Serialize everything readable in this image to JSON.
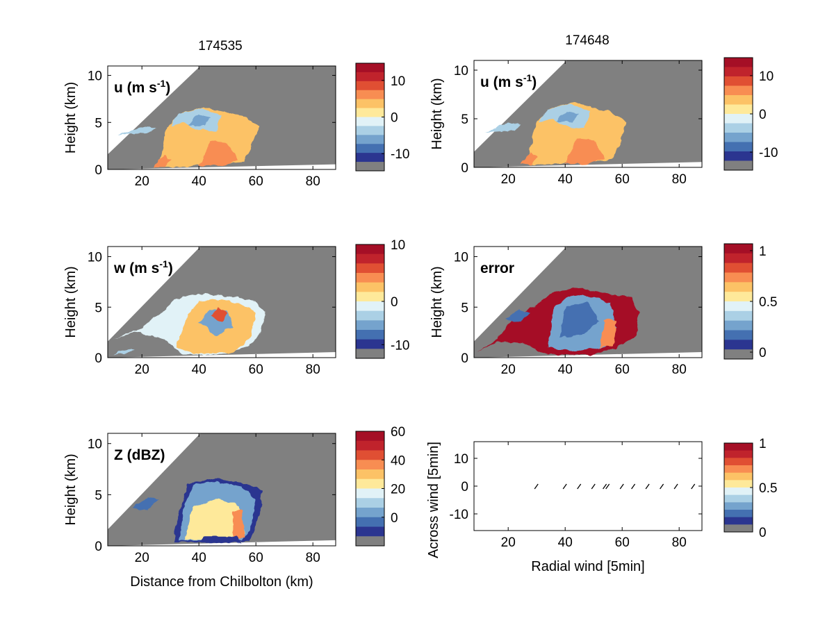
{
  "columns": [
    {
      "title": "174535"
    },
    {
      "title": "174648"
    }
  ],
  "palettes": {
    "div": [
      "#808080",
      "#2b3590",
      "#4470b1",
      "#75a3cd",
      "#abd0e5",
      "#e1f2f7",
      "#fee99a",
      "#fcc266",
      "#f88d52",
      "#e04f33",
      "#c0232c",
      "#a50f26"
    ],
    "land": "#808080",
    "fill": "#ffffff"
  },
  "panels": [
    {
      "id": "u-left",
      "label": "u (m s",
      "label_sup": "-1",
      "label_tail": ")",
      "ylabel": "Height (km)",
      "xlabel": "",
      "xlim": [
        8,
        88
      ],
      "ylim": [
        0,
        11
      ],
      "xticks": [
        20,
        40,
        60,
        80
      ],
      "yticks": [
        0,
        5,
        10
      ],
      "colorbar": {
        "ticks": [
          "10",
          "0",
          "-10"
        ],
        "positions": [
          0.16,
          0.5,
          0.84
        ]
      },
      "field": "u"
    },
    {
      "id": "u-right",
      "label": "u (m s",
      "label_sup": "-1",
      "label_tail": ")",
      "ylabel": "Height (km)",
      "xlabel": "",
      "xlim": [
        8,
        88
      ],
      "ylim": [
        0,
        11
      ],
      "xticks": [
        20,
        40,
        60,
        80
      ],
      "yticks": [
        0,
        5,
        10
      ],
      "colorbar": {
        "ticks": [
          "10",
          "0",
          "-10"
        ],
        "positions": [
          0.16,
          0.5,
          0.84
        ]
      },
      "field": "u2"
    },
    {
      "id": "w-left",
      "label": "w (m s",
      "label_sup": "-1",
      "label_tail": ")",
      "ylabel": "Height (km)",
      "xlabel": "",
      "xlim": [
        8,
        88
      ],
      "ylim": [
        0,
        11
      ],
      "xticks": [
        20,
        40,
        60,
        80
      ],
      "yticks": [
        0,
        5,
        10
      ],
      "colorbar": {
        "ticks": [
          "10",
          "0",
          "-10"
        ],
        "positions": [
          0.0,
          0.5,
          0.88
        ]
      },
      "field": "w"
    },
    {
      "id": "error-right",
      "label": "error",
      "label_sup": "",
      "label_tail": "",
      "ylabel": "Height (km)",
      "xlabel": "",
      "xlim": [
        8,
        88
      ],
      "ylim": [
        0,
        11
      ],
      "xticks": [
        20,
        40,
        60,
        80
      ],
      "yticks": [
        0,
        5,
        10
      ],
      "colorbar": {
        "ticks": [
          "1",
          "0.5",
          "0"
        ],
        "positions": [
          0.06,
          0.5,
          0.94
        ]
      },
      "field": "error"
    },
    {
      "id": "z-left",
      "label": "Z (dBZ)",
      "label_sup": "",
      "label_tail": "",
      "ylabel": "Height (km)",
      "xlabel": "Distance from Chilbolton (km)",
      "xlim": [
        8,
        88
      ],
      "ylim": [
        0,
        11
      ],
      "xticks": [
        20,
        40,
        60,
        80
      ],
      "yticks": [
        0,
        5,
        10
      ],
      "colorbar": {
        "ticks": [
          "60",
          "40",
          "20",
          "0"
        ],
        "positions": [
          0.0,
          0.25,
          0.5,
          0.75
        ]
      },
      "field": "z"
    }
  ],
  "chart_data": [
    {
      "type": "heatmap",
      "panel": "u-left",
      "title": "174535",
      "label": "u (m s-1)",
      "ylabel": "Height (km)",
      "xlim": [
        8,
        88
      ],
      "ylim": [
        0,
        11
      ],
      "colorbar_range": [
        -16,
        16
      ],
      "colorbar_ticks": [
        10,
        0,
        -10
      ]
    },
    {
      "type": "heatmap",
      "panel": "u-right",
      "title": "174648",
      "label": "u (m s-1)",
      "ylabel": "Height (km)",
      "xlim": [
        8,
        88
      ],
      "ylim": [
        0,
        11
      ],
      "colorbar_range": [
        -16,
        16
      ],
      "colorbar_ticks": [
        10,
        0,
        -10
      ]
    },
    {
      "type": "heatmap",
      "panel": "w-left",
      "label": "w (m s-1)",
      "ylabel": "Height (km)",
      "xlim": [
        8,
        88
      ],
      "ylim": [
        0,
        11
      ],
      "colorbar_range": [
        -12,
        10
      ],
      "colorbar_ticks": [
        10,
        0,
        -10
      ]
    },
    {
      "type": "heatmap",
      "panel": "error-right",
      "label": "error",
      "ylabel": "Height (km)",
      "xlim": [
        8,
        88
      ],
      "ylim": [
        0,
        11
      ],
      "colorbar_range": [
        -0.05,
        1.1
      ],
      "colorbar_ticks": [
        1,
        0.5,
        0
      ]
    },
    {
      "type": "heatmap",
      "panel": "z-left",
      "label": "Z (dBZ)",
      "xlabel": "Distance from Chilbolton (km)",
      "ylabel": "Height (km)",
      "xlim": [
        8,
        88
      ],
      "ylim": [
        0,
        11
      ],
      "colorbar_range": [
        -20,
        60
      ],
      "colorbar_ticks": [
        60,
        40,
        20,
        0
      ]
    },
    {
      "type": "scatter",
      "panel": "wind-right",
      "xlabel": "Radial wind [5min]",
      "ylabel": "Across wind [5min]",
      "xlim": [
        8,
        88
      ],
      "ylim": [
        -16,
        16
      ],
      "xticks": [
        20,
        40,
        60,
        80
      ],
      "yticks": [
        10,
        0,
        -10
      ],
      "x": [
        30,
        40,
        45,
        50,
        54,
        55,
        60,
        64,
        69,
        74,
        79,
        85
      ],
      "y": [
        0,
        0,
        0,
        0,
        0,
        0,
        0,
        0,
        0,
        0,
        0,
        0
      ],
      "colorbar_ticks": [
        1,
        0.5,
        0
      ]
    }
  ],
  "wind": {
    "xlabel": "Radial wind [5min]",
    "ylabel": "Across wind [5min]",
    "xlim": [
      8,
      88
    ],
    "ylim": [
      -16,
      16
    ],
    "xticks": [
      20,
      40,
      60,
      80
    ],
    "yticks": [
      10,
      0,
      -10
    ],
    "colorbar": {
      "ticks": [
        "1",
        "0.5",
        "0"
      ],
      "positions": [
        0.0,
        0.5,
        1.0
      ]
    }
  }
}
